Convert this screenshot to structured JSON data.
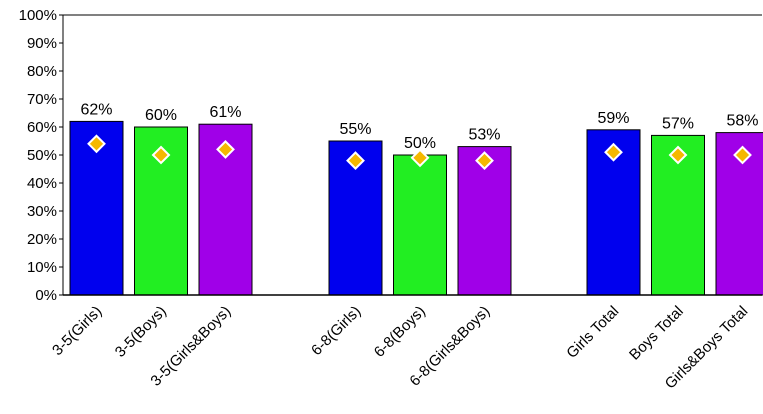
{
  "chart_data": {
    "type": "bar",
    "title": "",
    "xlabel": "",
    "ylabel": "",
    "ylim": [
      0,
      100
    ],
    "y_ticks": [
      "0%",
      "10%",
      "20%",
      "30%",
      "40%",
      "50%",
      "60%",
      "70%",
      "80%",
      "90%",
      "100%"
    ],
    "grid": false,
    "groups": [
      {
        "categories": [
          "3-5(Girls)",
          "3-5(Boys)",
          "3-5(Girls&Boys)"
        ],
        "values": [
          62,
          60,
          61
        ],
        "value_labels": [
          "62%",
          "60%",
          "61%"
        ],
        "markers": [
          54,
          50,
          52
        ]
      },
      {
        "categories": [
          "6-8(Girls)",
          "6-8(Boys)",
          "6-8(Girls&Boys)"
        ],
        "values": [
          55,
          50,
          53
        ],
        "value_labels": [
          "55%",
          "50%",
          "53%"
        ],
        "markers": [
          48,
          49,
          48
        ]
      },
      {
        "categories": [
          "Girls Total",
          "Boys Total",
          "Girls&Boys Total"
        ],
        "values": [
          59,
          57,
          58
        ],
        "value_labels": [
          "59%",
          "57%",
          "58%"
        ],
        "markers": [
          51,
          50,
          50
        ]
      }
    ],
    "bar_colors": [
      "#0000ee",
      "#22ee22",
      "#a000e8"
    ],
    "marker_fill": "#f5b800",
    "marker_stroke": "#ffffff"
  }
}
